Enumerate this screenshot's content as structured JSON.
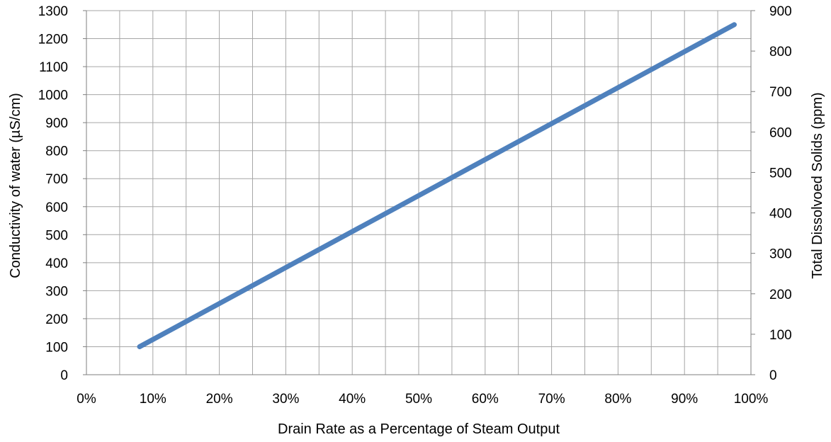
{
  "chart_data": {
    "type": "line",
    "title": "",
    "xlabel": "Drain Rate as a Percentage of Steam Output",
    "ylabel": "Conductivity of water (µS/cm)",
    "y2label": "Total Dissolvoed  Solids (ppm)",
    "x_ticks": [
      "0%",
      "10%",
      "20%",
      "30%",
      "40%",
      "50%",
      "60%",
      "70%",
      "80%",
      "90%",
      "100%"
    ],
    "y_ticks": [
      "0",
      "100",
      "200",
      "300",
      "400",
      "500",
      "600",
      "700",
      "800",
      "900",
      "1000",
      "1100",
      "1200",
      "1300"
    ],
    "y2_ticks": [
      "0",
      "100",
      "200",
      "300",
      "400",
      "500",
      "600",
      "700",
      "800",
      "900"
    ],
    "xlim": [
      0,
      100
    ],
    "ylim": [
      0,
      1300
    ],
    "y2lim": [
      0,
      900
    ],
    "grid": true,
    "legend": "none",
    "series": [
      {
        "color": "#4f81bd",
        "x": [
          8,
          97.5
        ],
        "y": [
          100,
          1250
        ]
      }
    ]
  }
}
